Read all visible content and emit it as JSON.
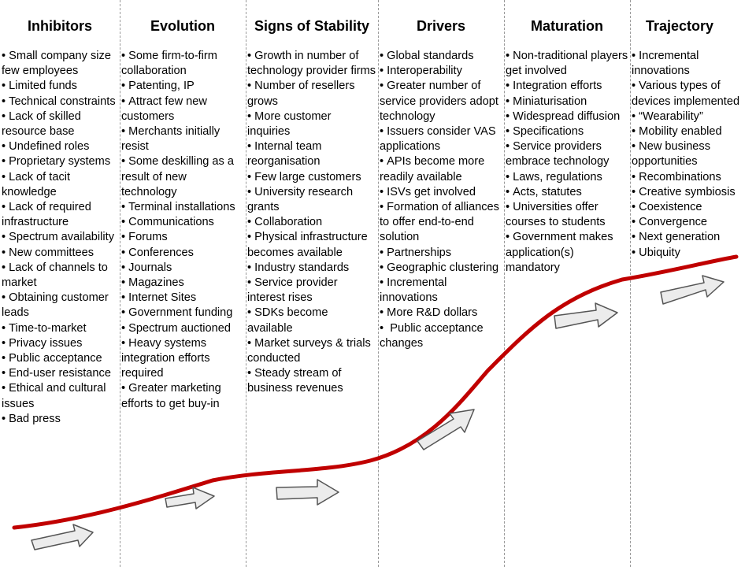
{
  "columns": [
    {
      "title": "Inhibitors",
      "items": [
        "Small company size few employees",
        "Limited funds",
        "Technical constraints",
        "Lack of skilled resource base",
        "Undefined roles",
        "Proprietary systems",
        "Lack of tacit knowledge",
        "Lack of required infrastructure",
        "Spectrum availability",
        "New committees",
        "Lack of channels to market",
        "Obtaining customer leads",
        "Time-to-market",
        "Privacy issues",
        "Public acceptance",
        "End-user resistance",
        "Ethical and cultural issues",
        "Bad press"
      ]
    },
    {
      "title": "Evolution",
      "items": [
        "Some firm-to-firm collaboration",
        "Patenting, IP",
        "Attract few new customers",
        "Merchants initially resist",
        "Some deskilling as a result of new technology",
        "Terminal installations",
        "Communications",
        "Forums",
        "Conferences",
        "Journals",
        "Magazines",
        "Internet Sites",
        "Government funding",
        "Spectrum auctioned",
        "Heavy systems integration efforts required",
        "Greater marketing efforts to get buy-in"
      ]
    },
    {
      "title": "Signs of Stability",
      "items": [
        "Growth in number of technology provider firms",
        "Number of resellers grows",
        "More customer inquiries",
        "Internal team reorganisation",
        "Few large customers",
        "University research grants",
        "Collaboration",
        "Physical infrastructure becomes available",
        "Industry standards",
        "Service provider interest rises",
        "SDKs become available",
        "Market surveys & trials conducted",
        "Steady stream of business revenues"
      ]
    },
    {
      "title": "Drivers",
      "items": [
        "Global standards",
        "Interoperability",
        "Greater number of service providers adopt technology",
        "Issuers consider VAS applications",
        "APIs become more readily available",
        "ISVs get involved",
        "Formation of alliances to offer end-to-end solution",
        "Partnerships",
        "Geographic clustering",
        "Incremental innovations",
        "More R&D dollars",
        " Public acceptance changes"
      ]
    },
    {
      "title": "Maturation",
      "items": [
        "Non-traditional players get involved",
        "Integration efforts",
        "Miniaturisation",
        "Widespread diffusion",
        "Specifications",
        "Service providers embrace technology",
        "Laws, regulations",
        "Acts, statutes",
        "Universities offer courses to students",
        "Government makes application(s) mandatory"
      ]
    },
    {
      "title": "Trajectory",
      "items": [
        "Incremental innovations",
        "Various types of devices implemented",
        "“Wearability”",
        "Mobility enabled",
        "New business opportunities",
        "Recombinations",
        "Creative symbiosis",
        "Coexistence",
        "Convergence",
        "Next generation",
        "Ubiquity"
      ]
    }
  ],
  "colors": {
    "curve": "#c00000",
    "arrow_fill": "#ececec",
    "arrow_stroke": "#555555",
    "divider": "#9a9a9a"
  }
}
